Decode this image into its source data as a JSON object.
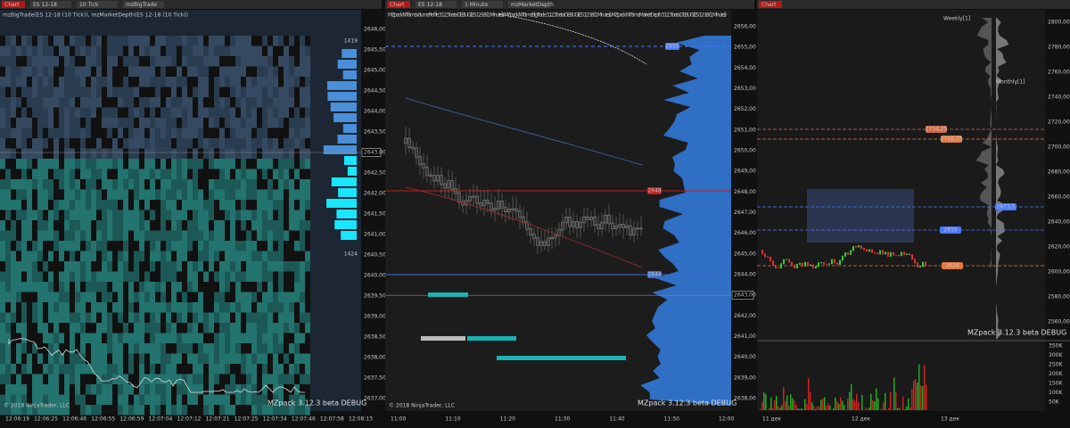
{
  "panels": [
    {
      "tabs": [
        "Chart",
        "ES 12-18",
        "10 Tick",
        "mzBigTrade"
      ],
      "indicators": "mzBigTrade(ES 12-18 (10 Tick)), mzMarketDepth(ES 12-18 (10 Tick))",
      "price_axis": [
        "2646,00",
        "2645,50",
        "2645,00",
        "2644,50",
        "2644,00",
        "2643,50",
        "2643,00",
        "2642,50",
        "2642,00",
        "2641,50",
        "2641,00",
        "2640,50",
        "2640,00",
        "2639,50",
        "2639,00",
        "2638,50",
        "2638,00",
        "2637,50",
        "2637,00"
      ],
      "current_price": "2643,00",
      "time_axis": [
        "12:06:19",
        "12:06:25",
        "12:06:46",
        "12:06:55",
        "12:06:59",
        "12:07:04",
        "12:07:12",
        "12:07:21",
        "12:07:25",
        "12:07:34",
        "12:07:46",
        "12:07:58",
        "12:08:13"
      ],
      "depth_labels": [
        "1419",
        "1424"
      ],
      "copyright": "© 2018 NinjaTrader, LLC",
      "watermark": "MZpack 3.12.3 beta DEBUG"
    },
    {
      "tabs": [
        "Chart",
        "ES 12-18",
        "1 Minute",
        "mzMarketDepth"
      ],
      "indicators": "MZpack.NT8.mzVolumeProfile 3.12.3 beta DEBUG(ES 12-18 (1 Minute)), MZpack.NT8.mzBigTrade 3.12.3 beta DEBUG(ES 12-18 (1 Minute)), MZpack.NT8.mzMarketDepth 3.12.3 beta DEBUG(ES 12-18 (1 Minute))",
      "price_axis": [
        "2656,00",
        "2655,00",
        "2654,00",
        "2653,00",
        "2652,00",
        "2651,00",
        "2650,00",
        "2649,00",
        "2648,00",
        "2647,00",
        "2646,00",
        "2645,00",
        "2644,00",
        "2643,00",
        "2642,00",
        "2641,00",
        "2640,00",
        "2639,00",
        "2638,00"
      ],
      "current_price": "2643,00",
      "level_labels": [
        "2655",
        "2648",
        "2644"
      ],
      "time_axis": [
        "11:00",
        "11:10",
        "11:20",
        "11:30",
        "11:40",
        "11:50",
        "12:00"
      ],
      "copyright": "© 2018 NinjaTrader, LLC",
      "watermark": "MZpack 3.12.3 beta DEBUG"
    },
    {
      "tabs": [
        "Chart"
      ],
      "price_axis": [
        "2800,00",
        "2780,00",
        "2760,00",
        "2740,00",
        "2720,00",
        "2700,00",
        "2680,00",
        "2660,00",
        "2640,00",
        "2620,00",
        "2600,00",
        "2580,00",
        "2560,00"
      ],
      "current_price": "2643,00",
      "profile_labels": [
        "Weekly[1]",
        "Monthly[1]"
      ],
      "level_labels": [
        "2734,25",
        "2726,75",
        "2673,5",
        "2655",
        "2626"
      ],
      "volume_axis": [
        "350K",
        "300K",
        "250K",
        "200K",
        "150K",
        "100K",
        "50K"
      ],
      "time_axis": [
        "11 дек",
        "12 дек",
        "13 дек"
      ],
      "watermark": "MZpack 3.12.3 beta DEBUG"
    }
  ]
}
